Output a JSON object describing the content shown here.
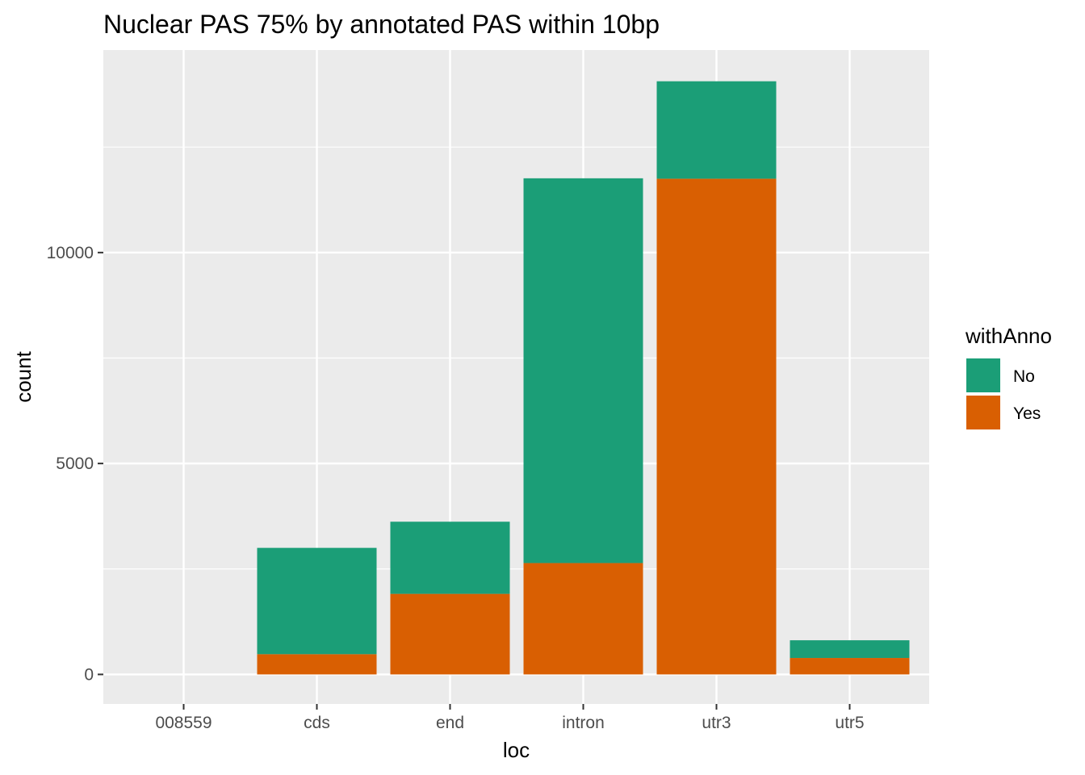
{
  "chart_data": {
    "type": "bar",
    "stacked": true,
    "title": "Nuclear PAS 75% by annotated PAS within 10bp",
    "xlabel": "loc",
    "ylabel": "count",
    "categories": [
      "008559",
      "cds",
      "end",
      "intron",
      "utr3",
      "utr5"
    ],
    "series": [
      {
        "name": "Yes",
        "color": "#D95F02",
        "values": [
          0,
          480,
          1910,
          2640,
          11750,
          390
        ]
      },
      {
        "name": "No",
        "color": "#1B9E77",
        "values": [
          0,
          2520,
          1710,
          9120,
          2310,
          420
        ]
      }
    ],
    "yticks": [
      0,
      5000,
      10000
    ],
    "ylim": [
      -700,
      14800
    ],
    "grid": true,
    "panel_background": "#EBEBEB",
    "legend": {
      "title": "withAnno",
      "position": "right",
      "items": [
        "No",
        "Yes"
      ]
    }
  }
}
